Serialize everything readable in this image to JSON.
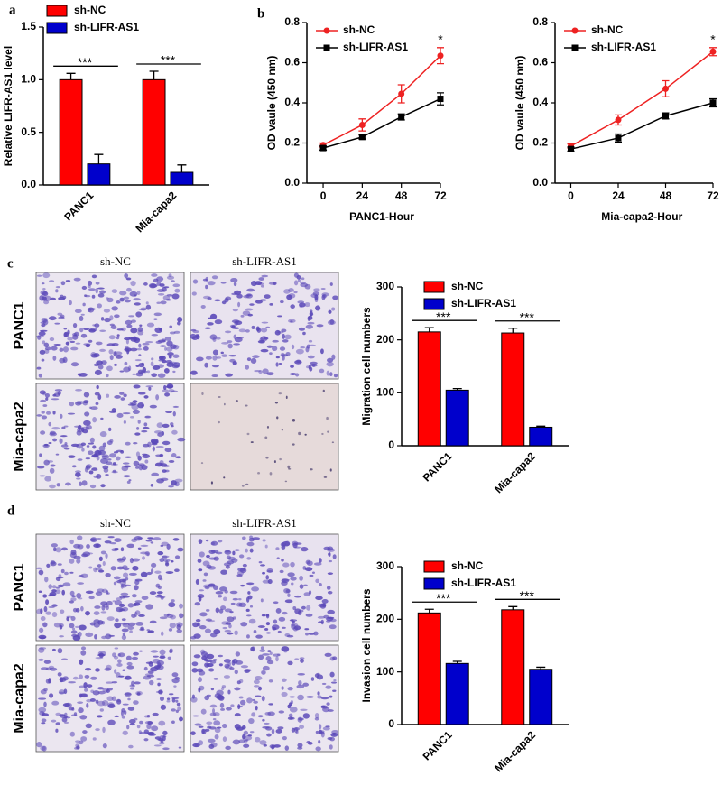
{
  "panel_labels": [
    "a",
    "b",
    "c",
    "d"
  ],
  "micrographs": [
    {
      "columns": [
        "sh-NC",
        "sh-LIFR-AS1"
      ],
      "rows": [
        "PANC1",
        "Mia-capa2"
      ]
    },
    {
      "columns": [
        "sh-NC",
        "sh-LIFR-AS1"
      ],
      "rows": [
        "PANC1",
        "Mia-capa2"
      ]
    }
  ],
  "chart_data": [
    {
      "type": "bar",
      "y_label": "Relative LIFR-AS1 level",
      "categories": [
        "PANC1",
        "Mia-capa2"
      ],
      "series": [
        {
          "name": "sh-NC",
          "color": "#ff0000",
          "values": [
            1.0,
            1.0
          ],
          "errors": [
            0.06,
            0.08
          ]
        },
        {
          "name": "sh-LIFR-AS1",
          "color": "#0000cc",
          "values": [
            0.2,
            0.12
          ],
          "errors": [
            0.09,
            0.07
          ]
        }
      ],
      "annotations": [
        "***",
        "***"
      ],
      "ylim": [
        0,
        1.5
      ],
      "yticks": [
        {
          "value": 0,
          "label": "0.0"
        },
        0.5,
        {
          "value": 1,
          "label": "1.0"
        },
        1.5
      ]
    },
    {
      "type": "line",
      "x_label": "PANC1-Hour",
      "y_label": "OD vaule (450 nm)",
      "x": [
        0,
        24,
        48,
        72
      ],
      "series": [
        {
          "name": "sh-NC",
          "color": "#ee2222",
          "marker": "circle",
          "values": [
            0.19,
            0.29,
            0.445,
            0.635
          ],
          "errors": [
            0.01,
            0.03,
            0.045,
            0.04
          ]
        },
        {
          "name": "sh-LIFR-AS1",
          "color": "#000000",
          "marker": "square",
          "values": [
            0.175,
            0.23,
            0.33,
            0.42
          ],
          "errors": [
            0.01,
            0.01,
            0.015,
            0.03
          ]
        }
      ],
      "annotations": [
        null,
        null,
        null,
        "*"
      ],
      "xlim": [
        -10,
        72
      ],
      "xticks": [
        0,
        24,
        48,
        72
      ],
      "ylim": [
        0,
        0.8
      ],
      "yticks": [
        {
          "value": 0,
          "label": "0.0"
        },
        0.2,
        0.4,
        0.6,
        0.8
      ]
    },
    {
      "type": "line",
      "x_label": "Mia-capa2-Hour",
      "y_label": "OD vaule (450 nm)",
      "x": [
        0,
        24,
        48,
        72
      ],
      "series": [
        {
          "name": "sh-NC",
          "color": "#ee2222",
          "marker": "circle",
          "values": [
            0.185,
            0.315,
            0.47,
            0.655
          ],
          "errors": [
            0.01,
            0.025,
            0.04,
            0.02
          ]
        },
        {
          "name": "sh-LIFR-AS1",
          "color": "#000000",
          "marker": "square",
          "values": [
            0.17,
            0.225,
            0.335,
            0.4
          ],
          "errors": [
            0.01,
            0.02,
            0.015,
            0.02
          ]
        }
      ],
      "annotations": [
        null,
        null,
        null,
        "*"
      ],
      "xlim": [
        -8,
        72
      ],
      "xticks": [
        0,
        24,
        48,
        72
      ],
      "ylim": [
        0,
        0.8
      ],
      "yticks": [
        {
          "value": 0,
          "label": "0.0"
        },
        0.2,
        0.4,
        0.6,
        0.8
      ]
    },
    {
      "type": "bar",
      "y_label": "Migration cell numbers",
      "categories": [
        "PANC1",
        "Mia-capa2"
      ],
      "series": [
        {
          "name": "sh-NC",
          "color": "#ff0000",
          "values": [
            215,
            213
          ],
          "errors": [
            8,
            9
          ]
        },
        {
          "name": "sh-LIFR-AS1",
          "color": "#0000cc",
          "values": [
            105,
            35
          ],
          "errors": [
            3,
            2
          ]
        }
      ],
      "annotations": [
        "***",
        "***"
      ],
      "ylim": [
        0,
        300
      ],
      "yticks": [
        0,
        100,
        200,
        300
      ]
    },
    {
      "type": "bar",
      "y_label": "Invasion cell numbers",
      "categories": [
        "PANC1",
        "Mia-capa2"
      ],
      "series": [
        {
          "name": "sh-NC",
          "color": "#ff0000",
          "values": [
            212,
            218
          ],
          "errors": [
            7,
            6
          ]
        },
        {
          "name": "sh-LIFR-AS1",
          "color": "#0000cc",
          "values": [
            116,
            105
          ],
          "errors": [
            4,
            4
          ]
        }
      ],
      "annotations": [
        "***",
        "***"
      ],
      "ylim": [
        0,
        300
      ],
      "yticks": [
        0,
        100,
        200,
        300
      ]
    }
  ]
}
